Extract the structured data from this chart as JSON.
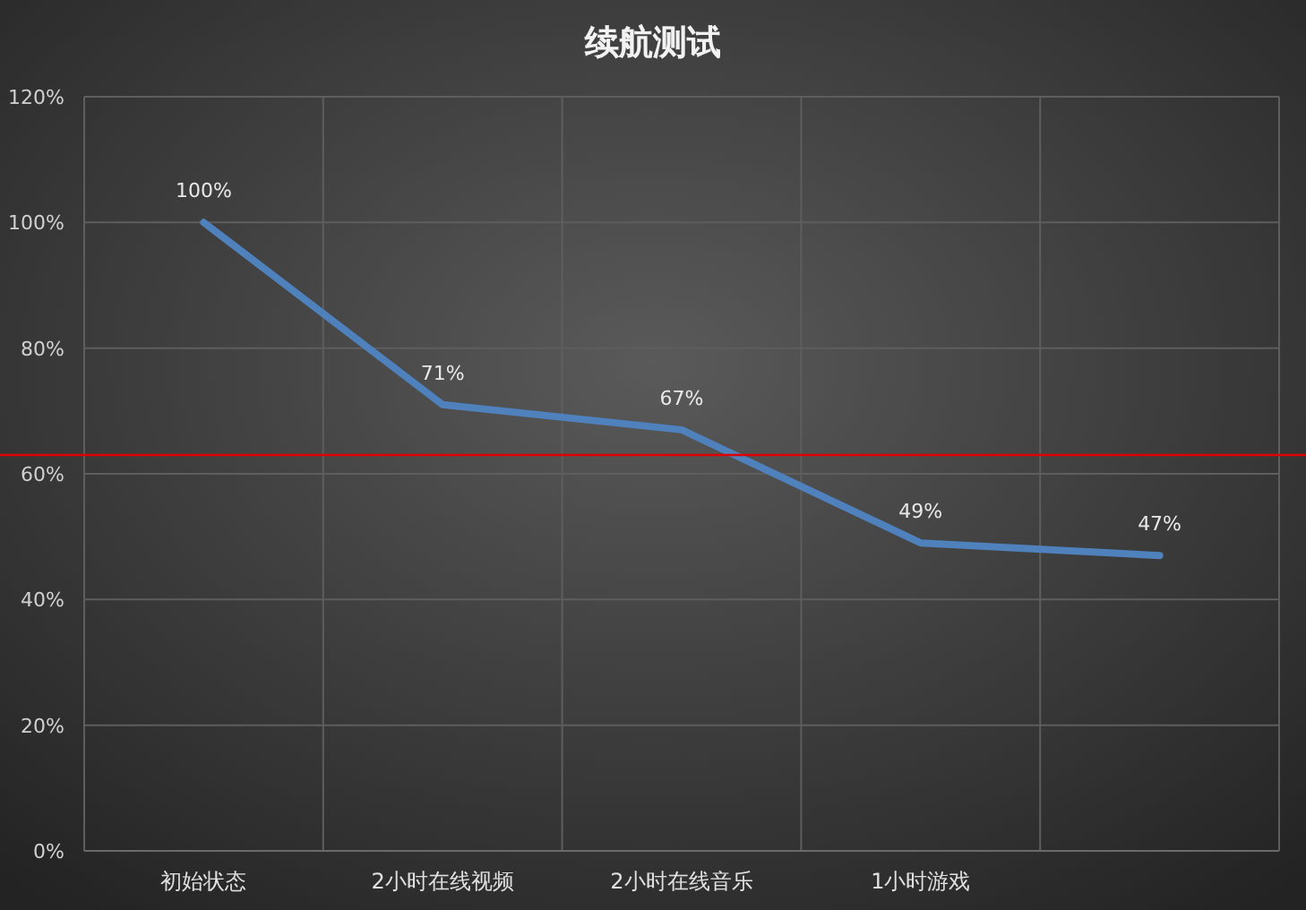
{
  "chart_data": {
    "type": "line",
    "title": "续航测试",
    "categories": [
      "初始状态",
      "2小时在线视频",
      "2小时在线音乐",
      "1小时游戏",
      null
    ],
    "series": [
      {
        "color": "#4f81bd",
        "values": [
          100,
          71,
          67,
          49,
          47
        ]
      }
    ],
    "ylim": [
      0,
      120
    ],
    "yticks": [
      {
        "value": 0,
        "label": "0%"
      },
      {
        "value": 20,
        "label": "20%"
      },
      {
        "value": 40,
        "label": "40%"
      },
      {
        "value": 60,
        "label": "60%"
      },
      {
        "value": 80,
        "label": "80%"
      },
      {
        "value": 100,
        "label": "100%"
      },
      {
        "value": 120,
        "label": "120%"
      }
    ],
    "value_labels": [
      "100%",
      "71%",
      "67%",
      "49%",
      "47%"
    ],
    "ref_lines": [
      {
        "axis": "y",
        "value": 63,
        "color": "#e00000"
      }
    ],
    "grid": true,
    "marker": "none",
    "line_style": "solid"
  }
}
